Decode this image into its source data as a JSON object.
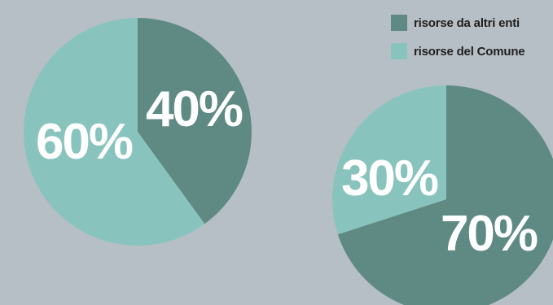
{
  "colors": {
    "background": "#b6bfc6",
    "altri_enti": "#5e8a83",
    "comune": "#88c4bd"
  },
  "legend": {
    "items": [
      {
        "label": "risorse da altri enti",
        "color": "#5e8a83"
      },
      {
        "label": "risorse del Comune",
        "color": "#88c4bd"
      }
    ]
  },
  "chart_data": [
    {
      "type": "pie",
      "series": [
        {
          "name": "risorse da altri enti",
          "value": 40,
          "label": "40%"
        },
        {
          "name": "risorse del Comune",
          "value": 60,
          "label": "60%"
        }
      ]
    },
    {
      "type": "pie",
      "series": [
        {
          "name": "risorse da altri enti",
          "value": 70,
          "label": "70%"
        },
        {
          "name": "risorse del Comune",
          "value": 30,
          "label": "30%"
        }
      ]
    }
  ]
}
